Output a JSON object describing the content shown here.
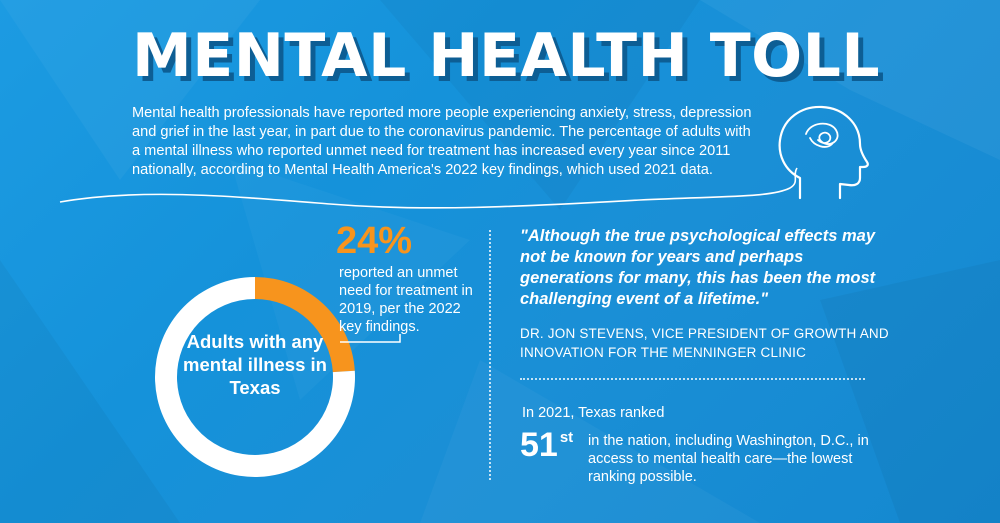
{
  "header": {
    "title": "MENTAL HEALTH TOLL",
    "intro": "Mental health professionals have reported more people experiencing anxiety, stress, depression and grief in the last year, in part due to the coronavirus pandemic. The percentage of adults with a mental illness who reported unmet need for treatment has increased every year since 2011 nationally, according to Mental Health America's 2022 key findings, which used 2021 data."
  },
  "chart_data": {
    "type": "pie",
    "title": "Adults with any mental illness in Texas",
    "slices": [
      {
        "label": "24%",
        "value": 24,
        "color": "#f7941d"
      },
      {
        "label": "",
        "value": 76,
        "color": "#ffffff"
      }
    ],
    "annotation": "reported an unmet need for treatment in 2019, per the 2022 key findings."
  },
  "quote": {
    "text": "\"Although the true psychological effects may not be known for years and perhaps generations for many, this has been the most challenging event of a lifetime.\"",
    "attribution": "DR. JON STEVENS, VICE PRESIDENT OF GROWTH AND INNOVATION FOR THE MENNINGER CLINIC"
  },
  "ranking": {
    "intro": "In 2021, Texas ranked",
    "number": "51",
    "suffix": "st",
    "description": "in the nation, including Washington, D.C., in access to mental health care—the lowest ranking possible."
  },
  "colors": {
    "background": "#1a93dc",
    "accent": "#f7941d",
    "text": "#ffffff"
  },
  "icons": {
    "head": "head-thought-icon"
  }
}
